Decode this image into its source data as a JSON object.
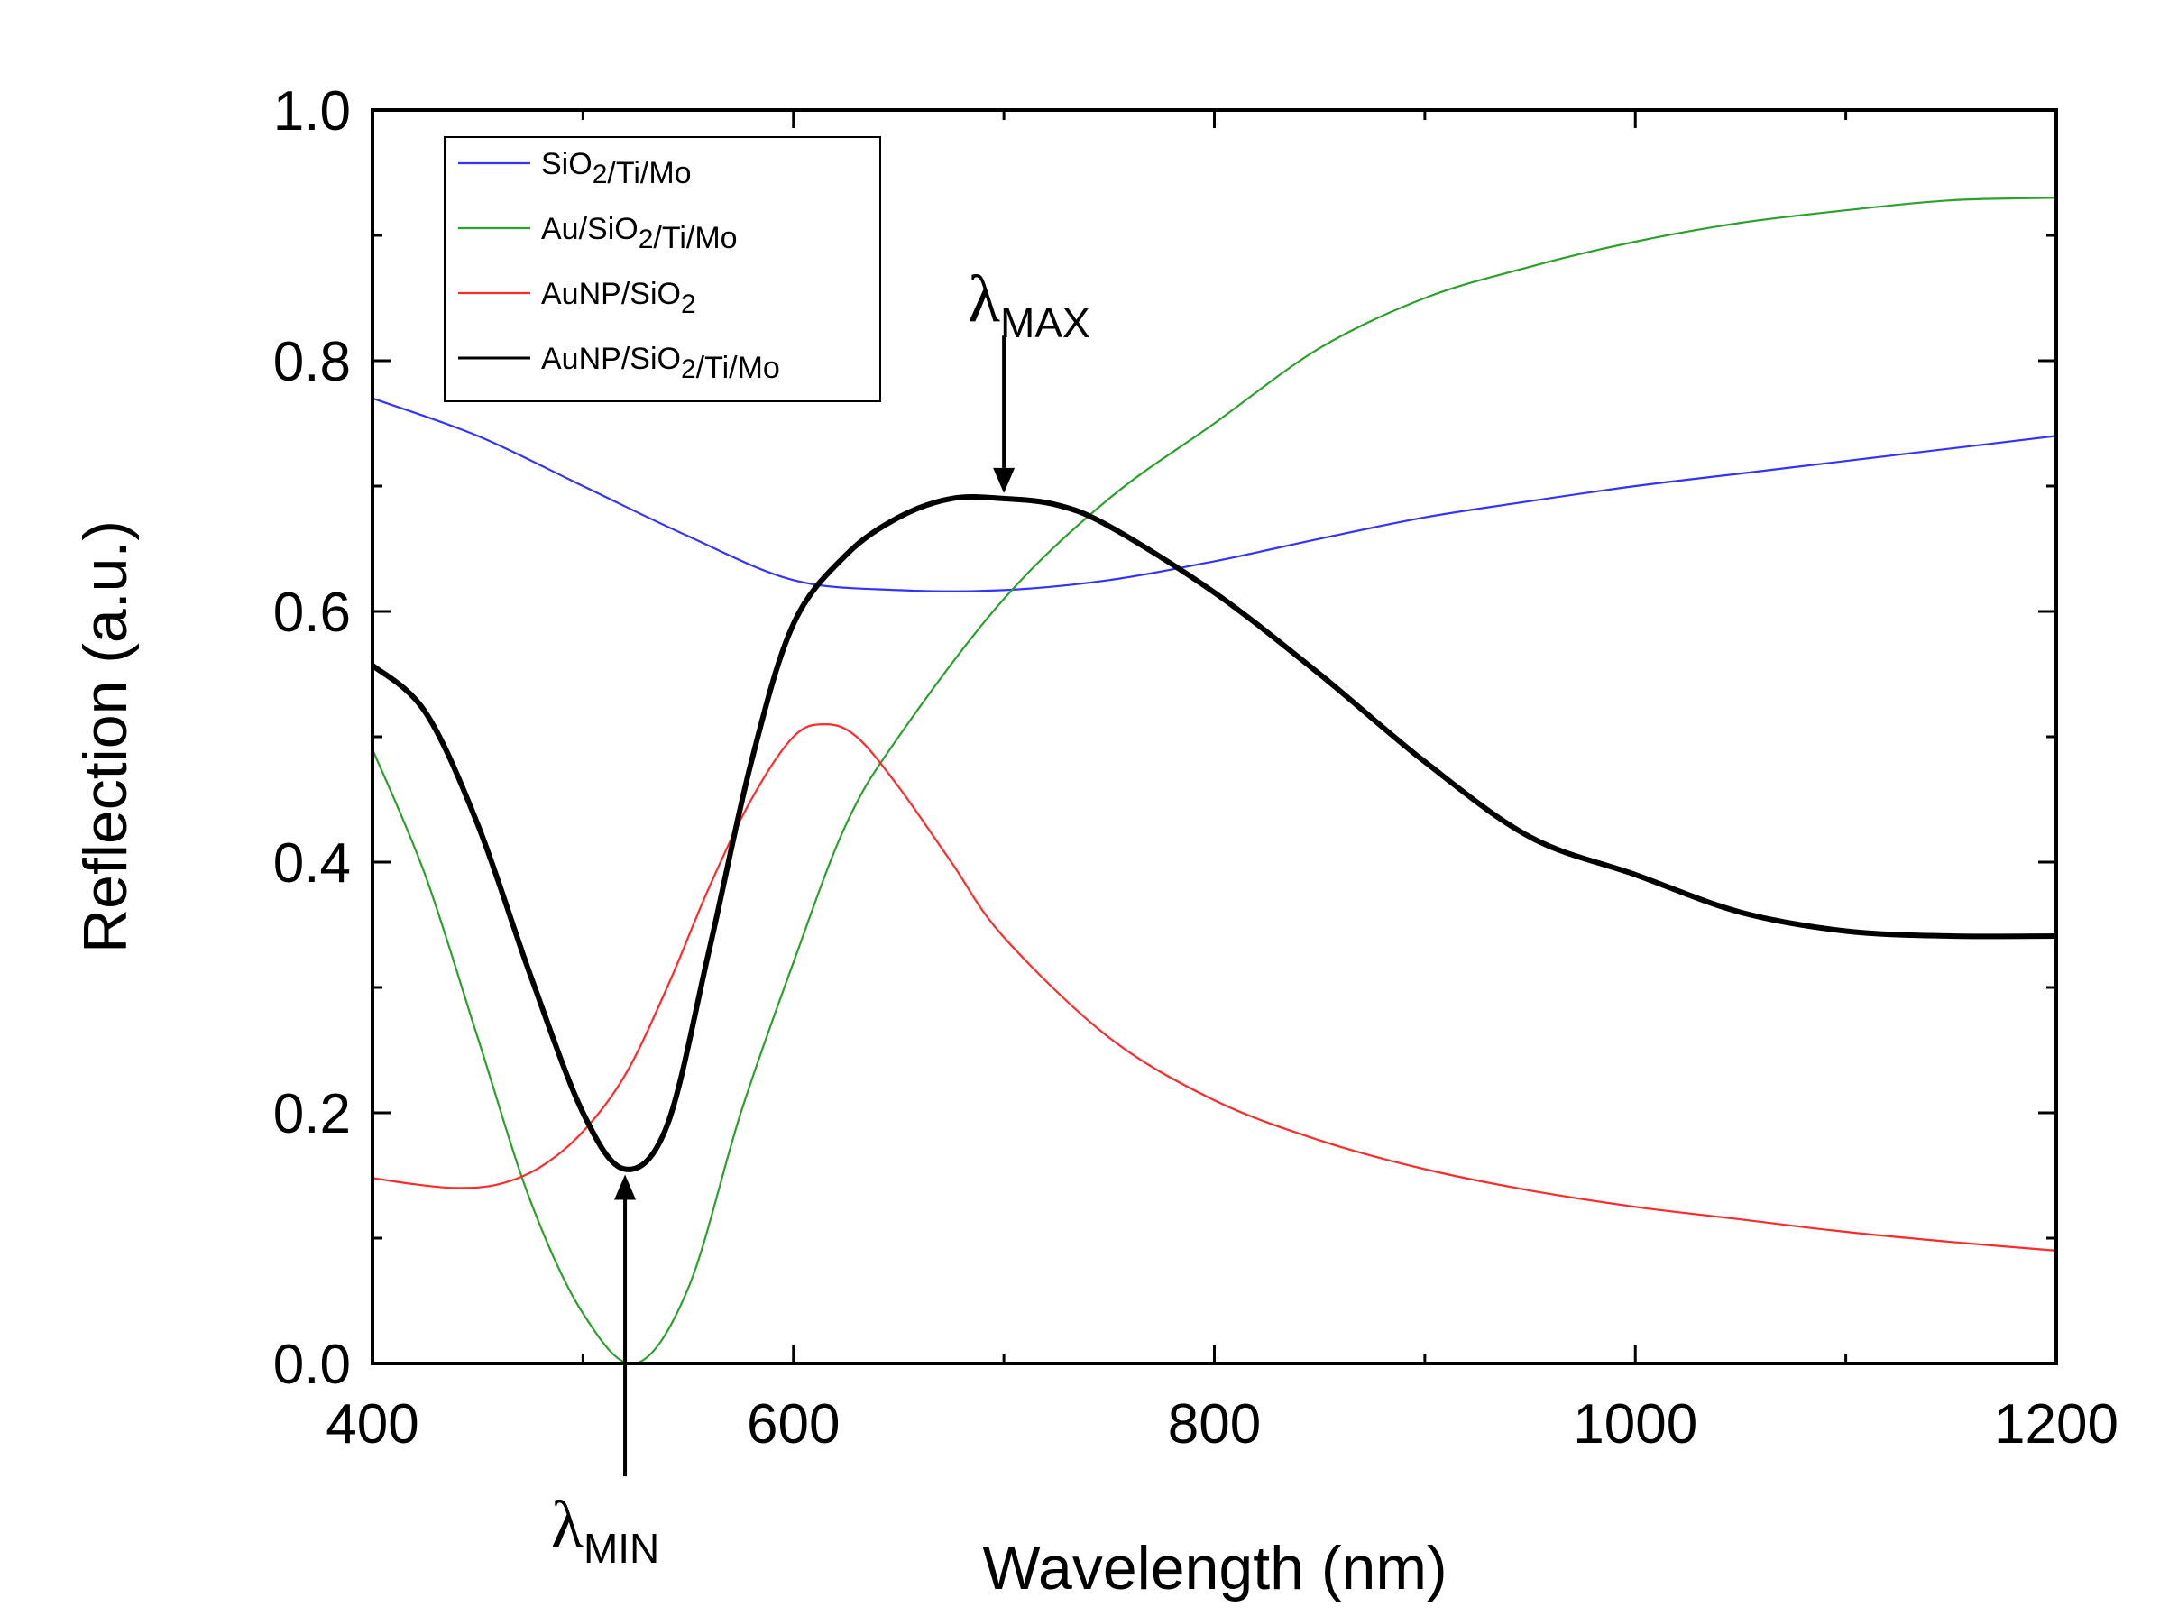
{
  "chart_data": {
    "type": "line",
    "title": "",
    "xlabel": "Wavelength (nm)",
    "ylabel": "Reflection (a.u.)",
    "xlim": [
      400,
      1200
    ],
    "ylim": [
      0.0,
      1.0
    ],
    "x_ticks": [
      400,
      600,
      800,
      1000,
      1200
    ],
    "x_tick_labels": [
      "400",
      "600",
      "800",
      "1000",
      "1200"
    ],
    "y_ticks": [
      0.0,
      0.2,
      0.4,
      0.6,
      0.8,
      1.0
    ],
    "y_tick_labels": [
      "0.0",
      "0.2",
      "0.4",
      "0.6",
      "0.8",
      "1.0"
    ],
    "x_minor_step": 100,
    "y_minor_step": 0.1,
    "grid": false,
    "legend_position": "top-left",
    "series": [
      {
        "name": "SiO2/Ti/Mo",
        "legend_parts": [
          [
            "SiO",
            ""
          ],
          [
            "2",
            "sub"
          ],
          [
            "/Ti/Mo",
            ""
          ]
        ],
        "color": "#3333ff",
        "stroke": "thin",
        "x": [
          400,
          450,
          500,
          550,
          600,
          650,
          700,
          750,
          800,
          850,
          900,
          950,
          1000,
          1050,
          1100,
          1150,
          1200
        ],
        "y": [
          0.77,
          0.74,
          0.7,
          0.66,
          0.625,
          0.617,
          0.617,
          0.625,
          0.64,
          0.658,
          0.675,
          0.688,
          0.7,
          0.71,
          0.72,
          0.73,
          0.74
        ]
      },
      {
        "name": "Au/SiO2/Ti/Mo",
        "legend_parts": [
          [
            "Au/SiO",
            ""
          ],
          [
            "2",
            "sub"
          ],
          [
            "/Ti/Mo",
            ""
          ]
        ],
        "color": "#2ca02c",
        "stroke": "thin",
        "x": [
          400,
          425,
          450,
          475,
          500,
          525,
          550,
          575,
          600,
          625,
          650,
          700,
          750,
          800,
          850,
          900,
          950,
          1000,
          1050,
          1100,
          1150,
          1200
        ],
        "y": [
          0.49,
          0.39,
          0.26,
          0.13,
          0.04,
          0.0,
          0.06,
          0.2,
          0.32,
          0.43,
          0.5,
          0.61,
          0.69,
          0.75,
          0.81,
          0.85,
          0.875,
          0.895,
          0.91,
          0.92,
          0.928,
          0.93
        ]
      },
      {
        "name": "AuNP/SiO2",
        "legend_parts": [
          [
            "AuNP/SiO",
            ""
          ],
          [
            "2",
            "sub"
          ]
        ],
        "color": "#ff2a2a",
        "stroke": "thin",
        "x": [
          400,
          420,
          440,
          460,
          480,
          500,
          520,
          540,
          560,
          580,
          600,
          615,
          630,
          650,
          675,
          700,
          750,
          800,
          850,
          900,
          950,
          1000,
          1050,
          1100,
          1150,
          1200
        ],
        "y": [
          0.148,
          0.143,
          0.14,
          0.143,
          0.157,
          0.185,
          0.23,
          0.3,
          0.38,
          0.45,
          0.5,
          0.51,
          0.5,
          0.46,
          0.4,
          0.34,
          0.26,
          0.21,
          0.178,
          0.155,
          0.138,
          0.125,
          0.115,
          0.105,
          0.097,
          0.09
        ]
      },
      {
        "name": "AuNP/SiO2/Ti/Mo",
        "legend_parts": [
          [
            "AuNP/SiO",
            ""
          ],
          [
            "2",
            "sub"
          ],
          [
            "/Ti/Mo",
            ""
          ]
        ],
        "color": "#000000",
        "stroke": "thick",
        "x": [
          400,
          425,
          450,
          475,
          500,
          520,
          540,
          560,
          580,
          600,
          625,
          650,
          675,
          700,
          725,
          750,
          800,
          850,
          900,
          950,
          1000,
          1050,
          1100,
          1150,
          1200
        ],
        "y": [
          0.557,
          0.52,
          0.43,
          0.31,
          0.2,
          0.155,
          0.19,
          0.33,
          0.48,
          0.59,
          0.645,
          0.675,
          0.69,
          0.69,
          0.685,
          0.668,
          0.615,
          0.55,
          0.48,
          0.42,
          0.39,
          0.36,
          0.345,
          0.341,
          0.341
        ]
      }
    ],
    "annotations": [
      {
        "text": "λ",
        "subscript": "MAX",
        "x": 700,
        "y_from": 0.82,
        "y_to": 0.69,
        "direction": "down"
      },
      {
        "text": "λ",
        "subscript": "MIN",
        "x": 520,
        "y_from": -0.09,
        "y_to": 0.155,
        "direction": "up"
      }
    ]
  }
}
